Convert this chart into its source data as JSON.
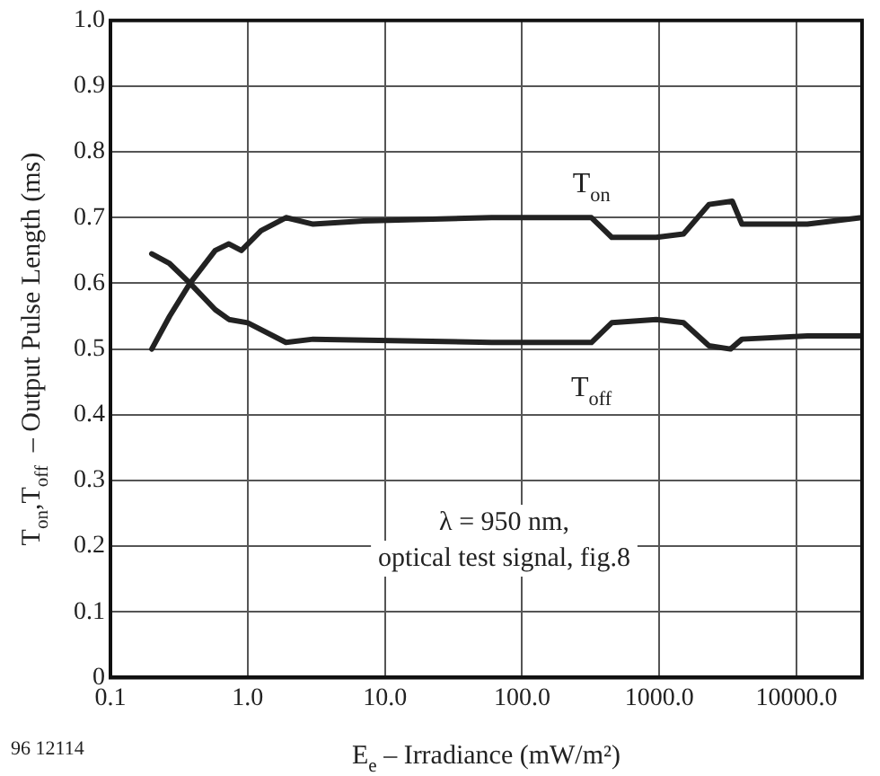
{
  "chart_data": {
    "type": "line",
    "xlabel": "E$_{e}$ – Irradiance (mW/m²)",
    "ylabel": "T$_{on}$,T$_{off}$  – Output Pulse Length (ms)",
    "log": "x",
    "xlim": [
      0.1,
      30000
    ],
    "xticks": [
      0.1,
      {
        "value": 1,
        "label": "1.0"
      },
      {
        "value": 10,
        "label": "10.0"
      },
      {
        "value": 100,
        "label": "100.0"
      },
      {
        "value": 1000,
        "label": "1000.0"
      },
      {
        "value": 10000,
        "label": "10000.0"
      }
    ],
    "ylim": [
      0,
      1
    ],
    "yticks": [
      0,
      0.1,
      0.2,
      0.3,
      0.4,
      0.5,
      0.6,
      0.7,
      0.8,
      0.9,
      {
        "value": 1,
        "label": "1.0"
      }
    ],
    "grid": true,
    "legend": false,
    "marker": "none",
    "line_style": "solid",
    "series": [
      {
        "name": "T$_{on}$",
        "color": "#222222",
        "x": [
          0.2,
          0.27,
          0.38,
          0.58,
          0.73,
          0.9,
          1.25,
          1.9,
          3,
          7,
          60,
          320,
          450,
          950,
          1500,
          2300,
          3400,
          4000,
          12000,
          30000
        ],
        "values": [
          0.5,
          0.55,
          0.6,
          0.65,
          0.66,
          0.65,
          0.68,
          0.7,
          0.69,
          0.695,
          0.7,
          0.7,
          0.67,
          0.67,
          0.675,
          0.72,
          0.725,
          0.69,
          0.69,
          0.7
        ]
      },
      {
        "name": "T$_{off}$",
        "color": "#222222",
        "x": [
          0.2,
          0.27,
          0.38,
          0.58,
          0.73,
          1,
          1.9,
          3,
          60,
          320,
          450,
          950,
          1500,
          2300,
          3300,
          4000,
          12000,
          30000
        ],
        "values": [
          0.645,
          0.63,
          0.6,
          0.56,
          0.545,
          0.54,
          0.51,
          0.515,
          0.51,
          0.51,
          0.54,
          0.545,
          0.54,
          0.505,
          0.5,
          0.515,
          0.52,
          0.52
        ]
      }
    ],
    "annotations": [
      "λ = 950 nm,\noptical test signal, fig.8",
      "96 12114"
    ]
  }
}
